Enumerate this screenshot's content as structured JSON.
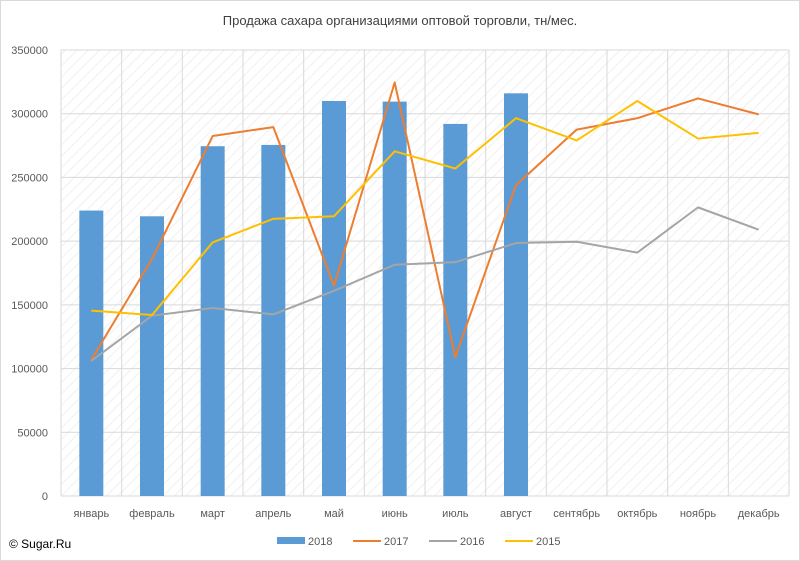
{
  "chart_data": {
    "type": "bar",
    "title": "Продажа сахара организациями оптовой торговли, тн/мес.",
    "xlabel": "",
    "ylabel": "",
    "ylim": [
      0,
      350000
    ],
    "yticks": [
      "0",
      "50000",
      "100000",
      "150000",
      "200000",
      "250000",
      "300000",
      "350000"
    ],
    "grid": true,
    "legend_position": "bottom",
    "categories": [
      "январь",
      "февраль",
      "март",
      "апрель",
      "май",
      "июнь",
      "июль",
      "август",
      "сентябрь",
      "октябрь",
      "ноябрь",
      "декабрь"
    ],
    "series": [
      {
        "name": "2018",
        "type": "bar",
        "color": "#5b9bd5",
        "values": [
          224000,
          219500,
          274500,
          275500,
          310000,
          309500,
          292000,
          316000,
          null,
          null,
          null,
          null
        ]
      },
      {
        "name": "2017",
        "type": "line",
        "color": "#ed7d31",
        "values": [
          107000,
          186000,
          282500,
          289500,
          165000,
          324500,
          109000,
          244000,
          287500,
          296500,
          312000,
          299500
        ]
      },
      {
        "name": "2016",
        "type": "line",
        "color": "#a5a5a5",
        "values": [
          106000,
          141500,
          147500,
          142500,
          161000,
          181500,
          183500,
          198500,
          199500,
          191000,
          226500,
          209000
        ]
      },
      {
        "name": "2015",
        "type": "line",
        "color": "#ffc000",
        "values": [
          145500,
          142000,
          199000,
          217500,
          219500,
          270500,
          257000,
          296500,
          279000,
          310000,
          280500,
          285000
        ]
      }
    ]
  },
  "copyright": "© Sugar.Ru"
}
